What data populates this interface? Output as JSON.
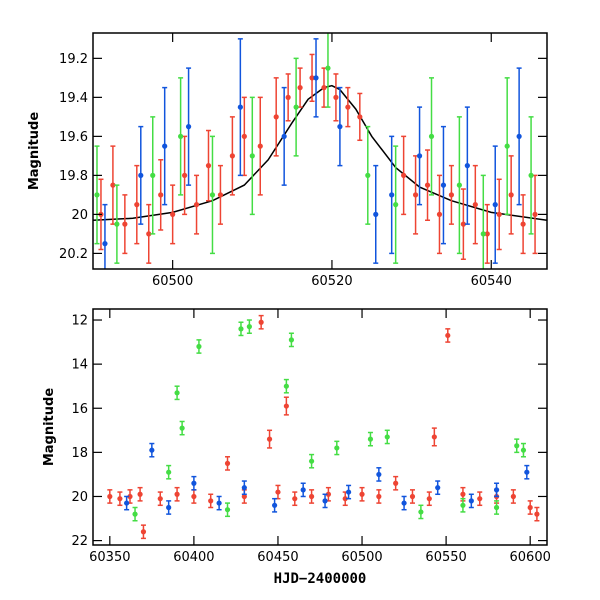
{
  "chart_data": [
    {
      "type": "scatter",
      "title": "",
      "xlabel": "",
      "ylabel": "Magnitude",
      "xlim": [
        60490,
        60547
      ],
      "ylim": [
        20.28,
        19.07
      ],
      "y_inverted": true,
      "x_ticks": [
        60500,
        60520,
        60540
      ],
      "x_tick_labels": [
        "60500",
        "60520",
        "60540"
      ],
      "y_ticks": [
        19.2,
        19.4,
        19.6,
        19.8,
        20.0,
        20.2
      ],
      "y_tick_labels": [
        "19.2",
        "19.4",
        "19.6",
        "19.8",
        "20",
        "20.2"
      ],
      "grid": false,
      "model_curve": {
        "color": "#000000",
        "x": [
          60490,
          60495,
          60500,
          60505,
          60509,
          60512,
          60515,
          60517,
          60519,
          60520,
          60521,
          60523,
          60525,
          60528,
          60531,
          60535,
          60540,
          60547
        ],
        "y": [
          20.03,
          20.02,
          19.99,
          19.93,
          19.85,
          19.72,
          19.53,
          19.41,
          19.35,
          19.34,
          19.36,
          19.46,
          19.6,
          19.76,
          19.86,
          19.93,
          19.99,
          20.03
        ]
      },
      "series": [
        {
          "color": "#ee4433",
          "points": [
            {
              "x": 60491.0,
              "y": 20.0,
              "err": 0.18
            },
            {
              "x": 60492.5,
              "y": 19.85,
              "err": 0.2
            },
            {
              "x": 60494.0,
              "y": 20.05,
              "err": 0.15
            },
            {
              "x": 60495.5,
              "y": 19.95,
              "err": 0.2
            },
            {
              "x": 60497.0,
              "y": 20.1,
              "err": 0.15
            },
            {
              "x": 60498.5,
              "y": 19.9,
              "err": 0.18
            },
            {
              "x": 60500.0,
              "y": 20.0,
              "err": 0.15
            },
            {
              "x": 60501.5,
              "y": 19.8,
              "err": 0.2
            },
            {
              "x": 60503.0,
              "y": 19.95,
              "err": 0.15
            },
            {
              "x": 60504.5,
              "y": 19.75,
              "err": 0.18
            },
            {
              "x": 60506.0,
              "y": 19.9,
              "err": 0.15
            },
            {
              "x": 60507.5,
              "y": 19.7,
              "err": 0.2
            },
            {
              "x": 60509.0,
              "y": 19.6,
              "err": 0.2
            },
            {
              "x": 60511.0,
              "y": 19.65,
              "err": 0.25
            },
            {
              "x": 60513.0,
              "y": 19.5,
              "err": 0.2
            },
            {
              "x": 60514.5,
              "y": 19.4,
              "err": 0.12
            },
            {
              "x": 60516.0,
              "y": 19.35,
              "err": 0.1
            },
            {
              "x": 60517.5,
              "y": 19.3,
              "err": 0.12
            },
            {
              "x": 60519.0,
              "y": 19.35,
              "err": 0.1
            },
            {
              "x": 60520.5,
              "y": 19.4,
              "err": 0.12
            },
            {
              "x": 60522.0,
              "y": 19.45,
              "err": 0.1
            },
            {
              "x": 60523.5,
              "y": 19.5,
              "err": 0.12
            },
            {
              "x": 60529.0,
              "y": 19.8,
              "err": 0.2
            },
            {
              "x": 60530.5,
              "y": 19.9,
              "err": 0.2
            },
            {
              "x": 60532.0,
              "y": 19.85,
              "err": 0.18
            },
            {
              "x": 60533.5,
              "y": 20.0,
              "err": 0.2
            },
            {
              "x": 60535.0,
              "y": 19.9,
              "err": 0.15
            },
            {
              "x": 60536.5,
              "y": 20.05,
              "err": 0.18
            },
            {
              "x": 60538.0,
              "y": 19.95,
              "err": 0.2
            },
            {
              "x": 60539.5,
              "y": 20.1,
              "err": 0.15
            },
            {
              "x": 60541.0,
              "y": 20.0,
              "err": 0.18
            },
            {
              "x": 60542.5,
              "y": 19.9,
              "err": 0.2
            },
            {
              "x": 60544.0,
              "y": 20.05,
              "err": 0.15
            },
            {
              "x": 60545.5,
              "y": 20.0,
              "err": 0.2
            }
          ]
        },
        {
          "color": "#1155dd",
          "points": [
            {
              "x": 60491.5,
              "y": 20.15,
              "err": 0.2
            },
            {
              "x": 60496.0,
              "y": 19.8,
              "err": 0.25
            },
            {
              "x": 60499.0,
              "y": 19.65,
              "err": 0.3
            },
            {
              "x": 60502.0,
              "y": 19.55,
              "err": 0.3
            },
            {
              "x": 60508.5,
              "y": 19.45,
              "err": 0.35
            },
            {
              "x": 60514.0,
              "y": 19.6,
              "err": 0.25
            },
            {
              "x": 60518.0,
              "y": 19.3,
              "err": 0.2
            },
            {
              "x": 60521.0,
              "y": 19.55,
              "err": 0.2
            },
            {
              "x": 60525.5,
              "y": 20.0,
              "err": 0.25
            },
            {
              "x": 60527.5,
              "y": 19.9,
              "err": 0.3
            },
            {
              "x": 60531.0,
              "y": 19.7,
              "err": 0.25
            },
            {
              "x": 60534.0,
              "y": 19.85,
              "err": 0.3
            },
            {
              "x": 60537.0,
              "y": 19.75,
              "err": 0.3
            },
            {
              "x": 60540.5,
              "y": 19.95,
              "err": 0.3
            },
            {
              "x": 60543.5,
              "y": 19.6,
              "err": 0.35
            }
          ]
        },
        {
          "color": "#44dd44",
          "points": [
            {
              "x": 60490.5,
              "y": 19.9,
              "err": 0.25
            },
            {
              "x": 60493.0,
              "y": 20.05,
              "err": 0.2
            },
            {
              "x": 60497.5,
              "y": 19.8,
              "err": 0.3
            },
            {
              "x": 60501.0,
              "y": 19.6,
              "err": 0.3
            },
            {
              "x": 60505.0,
              "y": 19.9,
              "err": 0.3
            },
            {
              "x": 60510.0,
              "y": 19.7,
              "err": 0.3
            },
            {
              "x": 60515.5,
              "y": 19.45,
              "err": 0.25
            },
            {
              "x": 60519.5,
              "y": 19.25,
              "err": 0.2
            },
            {
              "x": 60524.5,
              "y": 19.8,
              "err": 0.25
            },
            {
              "x": 60528.0,
              "y": 19.95,
              "err": 0.3
            },
            {
              "x": 60532.5,
              "y": 19.6,
              "err": 0.3
            },
            {
              "x": 60536.0,
              "y": 19.85,
              "err": 0.35
            },
            {
              "x": 60539.0,
              "y": 20.1,
              "err": 0.3
            },
            {
              "x": 60542.0,
              "y": 19.65,
              "err": 0.35
            },
            {
              "x": 60545.0,
              "y": 19.8,
              "err": 0.3
            }
          ]
        }
      ]
    },
    {
      "type": "scatter",
      "title": "",
      "xlabel": "HJD−2400000",
      "ylabel": "Magnitude",
      "xlim": [
        60340,
        60610
      ],
      "ylim": [
        22.2,
        11.5
      ],
      "y_inverted": true,
      "x_ticks": [
        60350,
        60400,
        60450,
        60500,
        60550,
        60600
      ],
      "x_tick_labels": [
        "60350",
        "60400",
        "60450",
        "60500",
        "60550",
        "60600"
      ],
      "y_ticks": [
        12,
        14,
        16,
        18,
        20,
        22
      ],
      "y_tick_labels": [
        "12",
        "14",
        "16",
        "18",
        "20",
        "22"
      ],
      "grid": false,
      "series": [
        {
          "color": "#ee4433",
          "points": [
            {
              "x": 60350,
              "y": 20.0,
              "err": 0.3
            },
            {
              "x": 60356,
              "y": 20.1,
              "err": 0.3
            },
            {
              "x": 60362,
              "y": 20.0,
              "err": 0.3
            },
            {
              "x": 60368,
              "y": 19.9,
              "err": 0.3
            },
            {
              "x": 60370,
              "y": 21.6,
              "err": 0.3
            },
            {
              "x": 60380,
              "y": 20.1,
              "err": 0.3
            },
            {
              "x": 60390,
              "y": 19.9,
              "err": 0.3
            },
            {
              "x": 60400,
              "y": 20.0,
              "err": 0.3
            },
            {
              "x": 60410,
              "y": 20.2,
              "err": 0.3
            },
            {
              "x": 60420,
              "y": 18.5,
              "err": 0.3
            },
            {
              "x": 60430,
              "y": 20.0,
              "err": 0.3
            },
            {
              "x": 60440,
              "y": 12.1,
              "err": 0.3
            },
            {
              "x": 60445,
              "y": 17.4,
              "err": 0.4
            },
            {
              "x": 60450,
              "y": 19.8,
              "err": 0.3
            },
            {
              "x": 60455,
              "y": 15.9,
              "err": 0.4
            },
            {
              "x": 60460,
              "y": 20.1,
              "err": 0.3
            },
            {
              "x": 60470,
              "y": 20.0,
              "err": 0.3
            },
            {
              "x": 60480,
              "y": 19.9,
              "err": 0.3
            },
            {
              "x": 60490,
              "y": 20.1,
              "err": 0.3
            },
            {
              "x": 60500,
              "y": 19.9,
              "err": 0.3
            },
            {
              "x": 60510,
              "y": 20.0,
              "err": 0.3
            },
            {
              "x": 60520,
              "y": 19.4,
              "err": 0.3
            },
            {
              "x": 60530,
              "y": 20.0,
              "err": 0.3
            },
            {
              "x": 60540,
              "y": 20.1,
              "err": 0.3
            },
            {
              "x": 60543,
              "y": 17.3,
              "err": 0.4
            },
            {
              "x": 60551,
              "y": 12.7,
              "err": 0.3
            },
            {
              "x": 60560,
              "y": 19.9,
              "err": 0.3
            },
            {
              "x": 60570,
              "y": 20.1,
              "err": 0.3
            },
            {
              "x": 60580,
              "y": 20.0,
              "err": 0.3
            },
            {
              "x": 60590,
              "y": 20.0,
              "err": 0.3
            },
            {
              "x": 60600,
              "y": 20.5,
              "err": 0.3
            },
            {
              "x": 60604,
              "y": 20.8,
              "err": 0.3
            }
          ]
        },
        {
          "color": "#1155dd",
          "points": [
            {
              "x": 60360,
              "y": 20.3,
              "err": 0.3
            },
            {
              "x": 60375,
              "y": 17.9,
              "err": 0.3
            },
            {
              "x": 60385,
              "y": 20.5,
              "err": 0.3
            },
            {
              "x": 60400,
              "y": 19.4,
              "err": 0.3
            },
            {
              "x": 60415,
              "y": 20.3,
              "err": 0.3
            },
            {
              "x": 60430,
              "y": 19.6,
              "err": 0.3
            },
            {
              "x": 60448,
              "y": 20.4,
              "err": 0.3
            },
            {
              "x": 60465,
              "y": 19.7,
              "err": 0.3
            },
            {
              "x": 60478,
              "y": 20.2,
              "err": 0.3
            },
            {
              "x": 60492,
              "y": 19.8,
              "err": 0.3
            },
            {
              "x": 60510,
              "y": 19.0,
              "err": 0.3
            },
            {
              "x": 60525,
              "y": 20.3,
              "err": 0.3
            },
            {
              "x": 60545,
              "y": 19.6,
              "err": 0.3
            },
            {
              "x": 60565,
              "y": 20.2,
              "err": 0.3
            },
            {
              "x": 60580,
              "y": 19.7,
              "err": 0.3
            },
            {
              "x": 60598,
              "y": 18.9,
              "err": 0.3
            }
          ]
        },
        {
          "color": "#44dd44",
          "points": [
            {
              "x": 60365,
              "y": 20.8,
              "err": 0.3
            },
            {
              "x": 60385,
              "y": 18.9,
              "err": 0.3
            },
            {
              "x": 60390,
              "y": 15.3,
              "err": 0.3
            },
            {
              "x": 60393,
              "y": 16.9,
              "err": 0.3
            },
            {
              "x": 60403,
              "y": 13.2,
              "err": 0.3
            },
            {
              "x": 60420,
              "y": 20.6,
              "err": 0.3
            },
            {
              "x": 60428,
              "y": 12.4,
              "err": 0.3
            },
            {
              "x": 60433,
              "y": 12.3,
              "err": 0.3
            },
            {
              "x": 60455,
              "y": 15.0,
              "err": 0.3
            },
            {
              "x": 60458,
              "y": 12.9,
              "err": 0.3
            },
            {
              "x": 60470,
              "y": 18.4,
              "err": 0.3
            },
            {
              "x": 60485,
              "y": 17.8,
              "err": 0.3
            },
            {
              "x": 60505,
              "y": 17.4,
              "err": 0.3
            },
            {
              "x": 60515,
              "y": 17.3,
              "err": 0.3
            },
            {
              "x": 60535,
              "y": 20.7,
              "err": 0.3
            },
            {
              "x": 60560,
              "y": 20.4,
              "err": 0.3
            },
            {
              "x": 60580,
              "y": 20.5,
              "err": 0.3
            },
            {
              "x": 60592,
              "y": 17.7,
              "err": 0.3
            },
            {
              "x": 60596,
              "y": 17.9,
              "err": 0.3
            }
          ]
        }
      ]
    }
  ]
}
